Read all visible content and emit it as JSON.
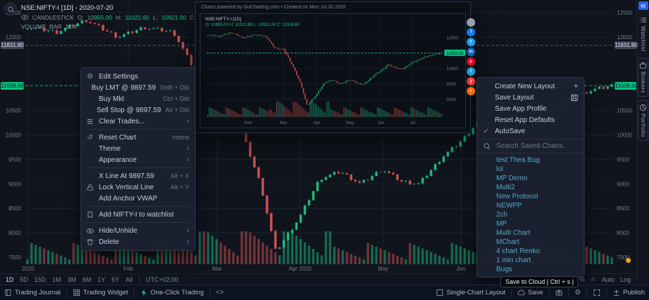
{
  "legend": {
    "symbol": "NSE:NIFTY-I [1D] - 2020-07-20",
    "series": "CANDLESTICK",
    "o_label": "O:",
    "o": "10955.00",
    "h_label": "H:",
    "h": "11022.65",
    "l_label": "L:",
    "l": "10921.00",
    "c_label": "C:",
    "c": "11008.60",
    "volume_label": "VOLUME_BAR",
    "volume_value": "12M"
  },
  "price_axis": {
    "badge_gray": "11831.80",
    "badge_green": "11008.60"
  },
  "context_menu": {
    "items": [
      {
        "icon": "gear",
        "label": "Edit Settings"
      },
      {
        "label": "Buy LMT @ 9897.59",
        "shortcut": "Shift + Dbl"
      },
      {
        "label": "Buy Mkt",
        "shortcut": "Ctrl + Dbl"
      },
      {
        "label": "Sell Stop @ 9897.59",
        "shortcut": "Alt + Dbl"
      },
      {
        "icon": "sliders",
        "label": "Clear Trades...",
        "submenu": true
      },
      {
        "divider": true
      },
      {
        "icon": "reset",
        "label": "Reset Chart",
        "shortcut": "Home"
      },
      {
        "label": "Theme",
        "submenu": true
      },
      {
        "label": "Appearance",
        "submenu": true
      },
      {
        "divider": true
      },
      {
        "label": "X Line At 9897.59",
        "shortcut": "Alt + X"
      },
      {
        "icon": "lock",
        "label": "Lock Vertical Line",
        "shortcut": "Alt + Y"
      },
      {
        "label": "Add Anchor VWAP"
      },
      {
        "divider": true
      },
      {
        "icon": "bookmark",
        "label": "Add NIFTY-I to watchlist"
      },
      {
        "divider": true
      },
      {
        "icon": "eye",
        "label": "Hide/Unhide",
        "submenu": true
      },
      {
        "icon": "trash",
        "label": "Delete",
        "submenu": true
      }
    ]
  },
  "layout_menu": {
    "actions": [
      {
        "label": "Create New Layout",
        "icon_right": "plus"
      },
      {
        "label": "Save Layout",
        "icon_right": "disk"
      },
      {
        "label": "Save App Profile"
      },
      {
        "label": "Reset App Defaults"
      },
      {
        "label": "AutoSave",
        "icon_left": "check"
      }
    ],
    "search_placeholder": "Search Saved Charts.",
    "saved_charts": [
      "test Thea Bug",
      "lol",
      "MP Demo",
      "Multi2",
      "New Protocol",
      "NEWPP",
      "2ch",
      "MP",
      "Multi Chart",
      "MChart",
      "4 chart Renko",
      "1 min chart",
      "Bugs"
    ]
  },
  "snapshot": {
    "title": "Charts powered by GoCharting.com  •  Created on Mon Jul 20 2020",
    "legend": "NSE:NIFTY-I [1D]",
    "ohlc": "O: 10955.00  H: 11022.65  L: 10921.00  C: 11008.60",
    "badge": "11008.60",
    "share_icons": [
      {
        "name": "copy-link",
        "color": "#98a1b3",
        "glyph": ""
      },
      {
        "name": "facebook",
        "color": "#1877f2",
        "glyph": "f"
      },
      {
        "name": "twitter",
        "color": "#1da1f2",
        "glyph": "t"
      },
      {
        "name": "linkedin",
        "color": "#0a66c2",
        "glyph": "in"
      },
      {
        "name": "pinterest",
        "color": "#e60023",
        "glyph": "p"
      },
      {
        "name": "telegram",
        "color": "#229ed9",
        "glyph": "t"
      },
      {
        "name": "youtube",
        "color": "#ff3333",
        "glyph": "y"
      },
      {
        "name": "reddit",
        "color": "#ff6a00",
        "glyph": "r"
      }
    ]
  },
  "timeframe": {
    "ranges": [
      "1D",
      "5D",
      "15D",
      "1M",
      "3M",
      "6M",
      "1Y",
      "5Y",
      "All"
    ],
    "timezone": "UTC+02:00",
    "right": [
      {
        "icon": "percent",
        "name": "percent"
      },
      {
        "icon": "star",
        "name": "star"
      },
      {
        "label": "Auto"
      },
      {
        "label": "Log"
      }
    ]
  },
  "status_bar": {
    "left": [
      {
        "icon": "book",
        "label": "Trading Journal"
      },
      {
        "icon": "grid",
        "label": "Trading Widget"
      },
      {
        "icon": "bolt",
        "icon_color": "#0ecb81",
        "label": "One-Click Trading"
      },
      {
        "icon": "code",
        "label": ""
      }
    ],
    "right": [
      {
        "icon": "layout",
        "label": "Single-Chart Layout"
      },
      {
        "icon": "cloud",
        "label": "Save"
      },
      {
        "icon": "camera",
        "label": ""
      },
      {
        "icon": "gear",
        "label": ""
      },
      {
        "icon": "expand",
        "label": ""
      },
      {
        "icon": "publish",
        "label": "Publish"
      }
    ]
  },
  "tooltip": "Save to Cloud | Ctrl + s |",
  "sidebar": {
    "tabs": [
      {
        "icon": "list",
        "label": "Watchlist",
        "boxed": false
      },
      {
        "icon": "briefcase",
        "label": "Brokers",
        "boxed": true
      },
      {
        "icon": "pie",
        "label": "Portfolio",
        "boxed": true
      }
    ]
  },
  "chart_data": {
    "type": "candlestick+volume",
    "symbol": "NSE:NIFTY-I",
    "interval": "1D",
    "title": "NSE:NIFTY-I [1D] - 2020-07-20",
    "price_min": 7500,
    "price_max": 12500,
    "price_ticks": [
      12500,
      12000,
      10500,
      10000,
      9500,
      9000,
      8500,
      8000,
      7500
    ],
    "line_green": 11008.6,
    "line_gray": 11831.8,
    "up_color": "#1fbf84",
    "down_color": "#d9534f",
    "wiggle": 12,
    "candles": 140,
    "months": [
      {
        "label": "2020",
        "t": 0.005
      },
      {
        "label": "Feb",
        "t": 0.175
      },
      {
        "label": "Mar",
        "t": 0.326
      },
      {
        "label": "Apr 2020",
        "t": 0.467
      },
      {
        "label": "May",
        "t": 0.608
      },
      {
        "label": "Jun",
        "t": 0.74
      }
    ],
    "mini_months": [
      {
        "label": "Feb",
        "t": 0.175
      },
      {
        "label": "Mar",
        "t": 0.326
      },
      {
        "label": "Apr",
        "t": 0.467
      },
      {
        "label": "May",
        "t": 0.608
      },
      {
        "label": "Jun",
        "t": 0.74
      },
      {
        "label": "Jul",
        "t": 0.875
      }
    ],
    "mini_ticks": [
      12000,
      10000,
      9000,
      8000
    ],
    "anchors": [
      [
        0,
        12200
      ],
      [
        0.05,
        12100
      ],
      [
        0.1,
        12350
      ],
      [
        0.155,
        12000
      ],
      [
        0.2,
        12200
      ],
      [
        0.25,
        12100
      ],
      [
        0.285,
        11350
      ],
      [
        0.325,
        11250
      ],
      [
        0.36,
        10300
      ],
      [
        0.4,
        8950
      ],
      [
        0.425,
        7610
      ],
      [
        0.465,
        8300
      ],
      [
        0.5,
        9100
      ],
      [
        0.535,
        9250
      ],
      [
        0.57,
        9000
      ],
      [
        0.607,
        9300
      ],
      [
        0.64,
        9050
      ],
      [
        0.67,
        9000
      ],
      [
        0.71,
        9550
      ],
      [
        0.74,
        9850
      ],
      [
        0.77,
        10250
      ],
      [
        0.8,
        10100
      ],
      [
        0.83,
        9950
      ],
      [
        0.875,
        10400
      ],
      [
        0.92,
        10700
      ],
      [
        0.96,
        10900
      ],
      [
        1,
        11008.6
      ]
    ]
  }
}
